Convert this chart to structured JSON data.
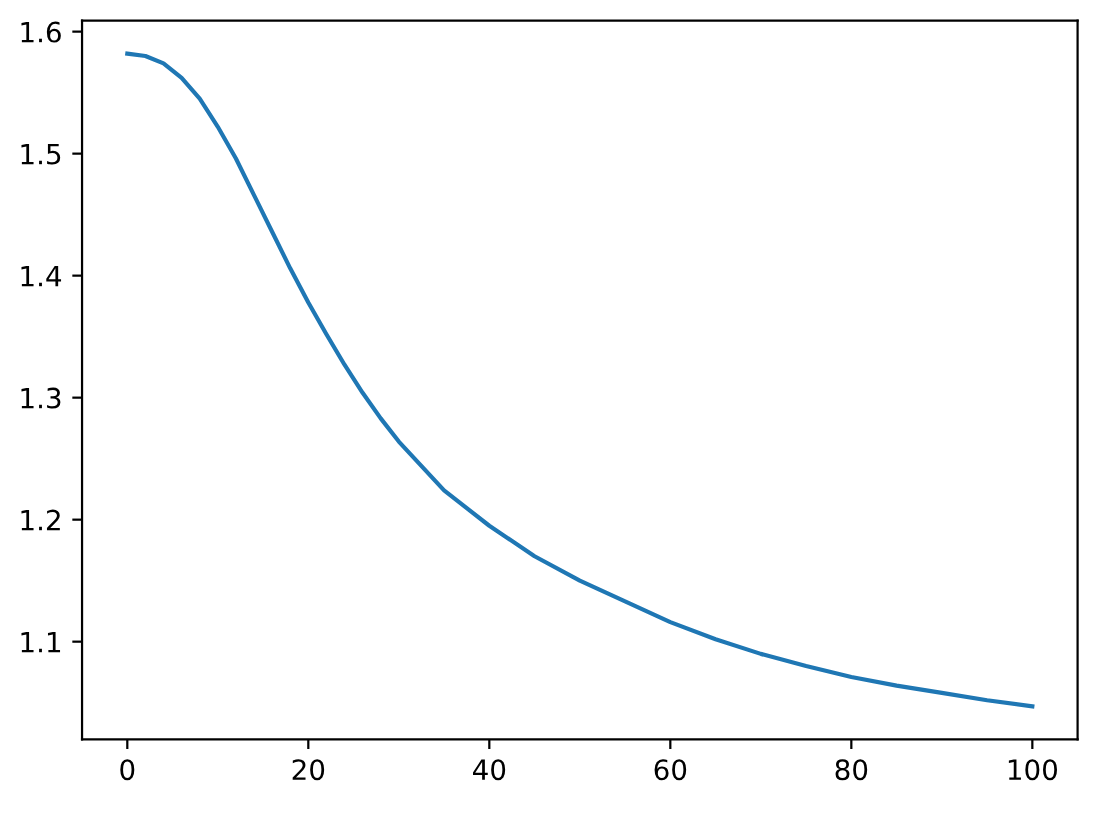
{
  "chart_data": {
    "type": "line",
    "x": [
      0,
      2,
      4,
      6,
      8,
      10,
      12,
      14,
      16,
      18,
      20,
      22,
      24,
      26,
      28,
      30,
      35,
      40,
      45,
      50,
      55,
      60,
      65,
      70,
      75,
      80,
      85,
      90,
      95,
      100
    ],
    "series": [
      {
        "color": "#1f77b4",
        "values": [
          1.582,
          1.58,
          1.574,
          1.562,
          1.545,
          1.522,
          1.496,
          1.466,
          1.436,
          1.406,
          1.378,
          1.352,
          1.327,
          1.304,
          1.283,
          1.264,
          1.224,
          1.195,
          1.17,
          1.15,
          1.133,
          1.116,
          1.102,
          1.09,
          1.08,
          1.071,
          1.064,
          1.058,
          1.052,
          1.047
        ]
      }
    ],
    "xlim": [
      -5,
      105
    ],
    "ylim": [
      1.02,
      1.609
    ],
    "xticks": [
      0,
      20,
      40,
      60,
      80,
      100
    ],
    "yticks": [
      {
        "value": 1.1,
        "label": "1.1"
      },
      {
        "value": 1.2,
        "label": "1.2"
      },
      {
        "value": 1.3,
        "label": "1.3"
      },
      {
        "value": 1.4,
        "label": "1.4"
      },
      {
        "value": 1.5,
        "label": "1.5"
      },
      {
        "value": 1.6,
        "label": "1.6"
      }
    ],
    "grid": false,
    "legend": false
  }
}
